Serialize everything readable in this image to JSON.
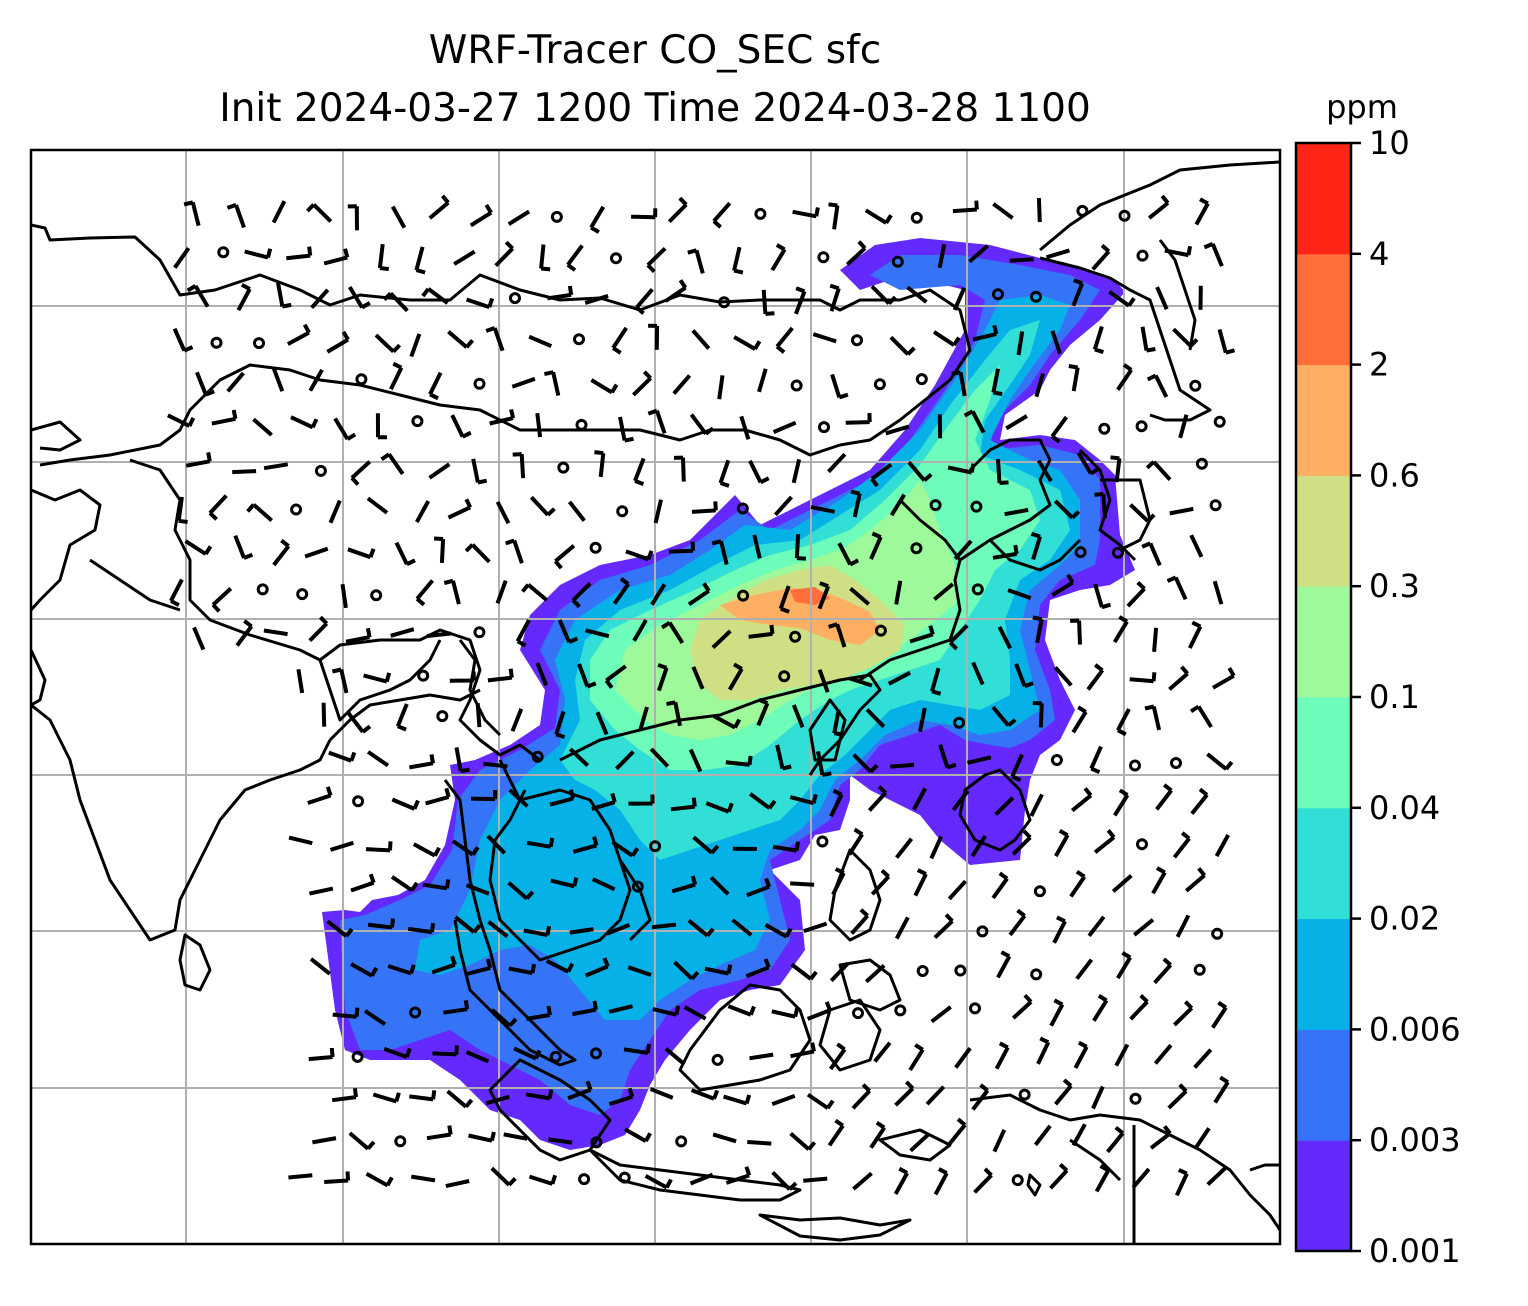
{
  "title_line1": "WRF-Tracer CO_SEC sfc",
  "title_line2": "Init 2024-03-27 1200 Time 2024-03-28 1100",
  "colorbar": {
    "unit": "ppm",
    "levels": [
      "0.001",
      "0.003",
      "0.006",
      "0.02",
      "0.04",
      "0.1",
      "0.3",
      "0.6",
      "2",
      "4",
      "10"
    ],
    "colors": [
      "#6429fd",
      "#3574f6",
      "#06b1e8",
      "#31dfd6",
      "#6efcba",
      "#9ef99a",
      "#cfe084",
      "#feaf61",
      "#ff6e3b",
      "#ff2516"
    ]
  },
  "map": {
    "projection_grid": "lat-lon gridlines",
    "barb_color": "#000000",
    "coast_color": "#000000",
    "grid_color": "#b0b0b0"
  }
}
